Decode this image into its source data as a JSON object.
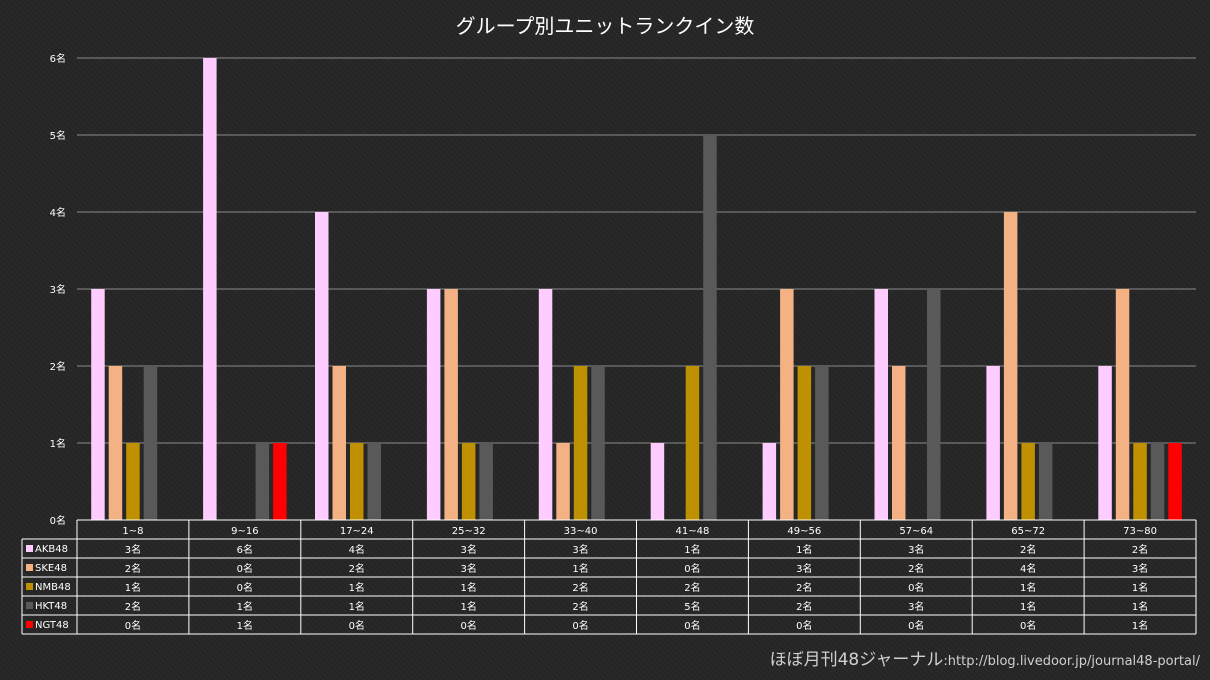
{
  "chart_data": {
    "type": "bar",
    "title": "グループ別ユニットランクイン数",
    "categories": [
      "1~8",
      "9~16",
      "17~24",
      "25~32",
      "33~40",
      "41~48",
      "49~56",
      "57~64",
      "65~72",
      "73~80"
    ],
    "series": [
      {
        "name": "AKB48",
        "color": "#ffccff",
        "values": [
          3,
          6,
          4,
          3,
          3,
          1,
          1,
          3,
          2,
          2
        ]
      },
      {
        "name": "SKE48",
        "color": "#f4b183",
        "values": [
          2,
          0,
          2,
          3,
          1,
          0,
          3,
          2,
          4,
          3
        ]
      },
      {
        "name": "NMB48",
        "color": "#bf9000",
        "values": [
          1,
          0,
          1,
          1,
          2,
          2,
          2,
          0,
          1,
          1
        ]
      },
      {
        "name": "HKT48",
        "color": "#595959",
        "values": [
          2,
          1,
          1,
          1,
          2,
          5,
          2,
          3,
          1,
          1
        ]
      },
      {
        "name": "NGT48",
        "color": "#ff0000",
        "values": [
          0,
          1,
          0,
          0,
          0,
          0,
          0,
          0,
          0,
          1
        ]
      }
    ],
    "yticks": [
      "0名",
      "1名",
      "2名",
      "3名",
      "4名",
      "5名",
      "6名"
    ],
    "ylim": [
      0,
      6
    ],
    "value_suffix": "名",
    "grid": true,
    "data_table": true
  },
  "footer": {
    "site": "ほぼ月刊48ジャーナル",
    "url": ":http://blog.livedoor.jp/journal48-portal/"
  }
}
